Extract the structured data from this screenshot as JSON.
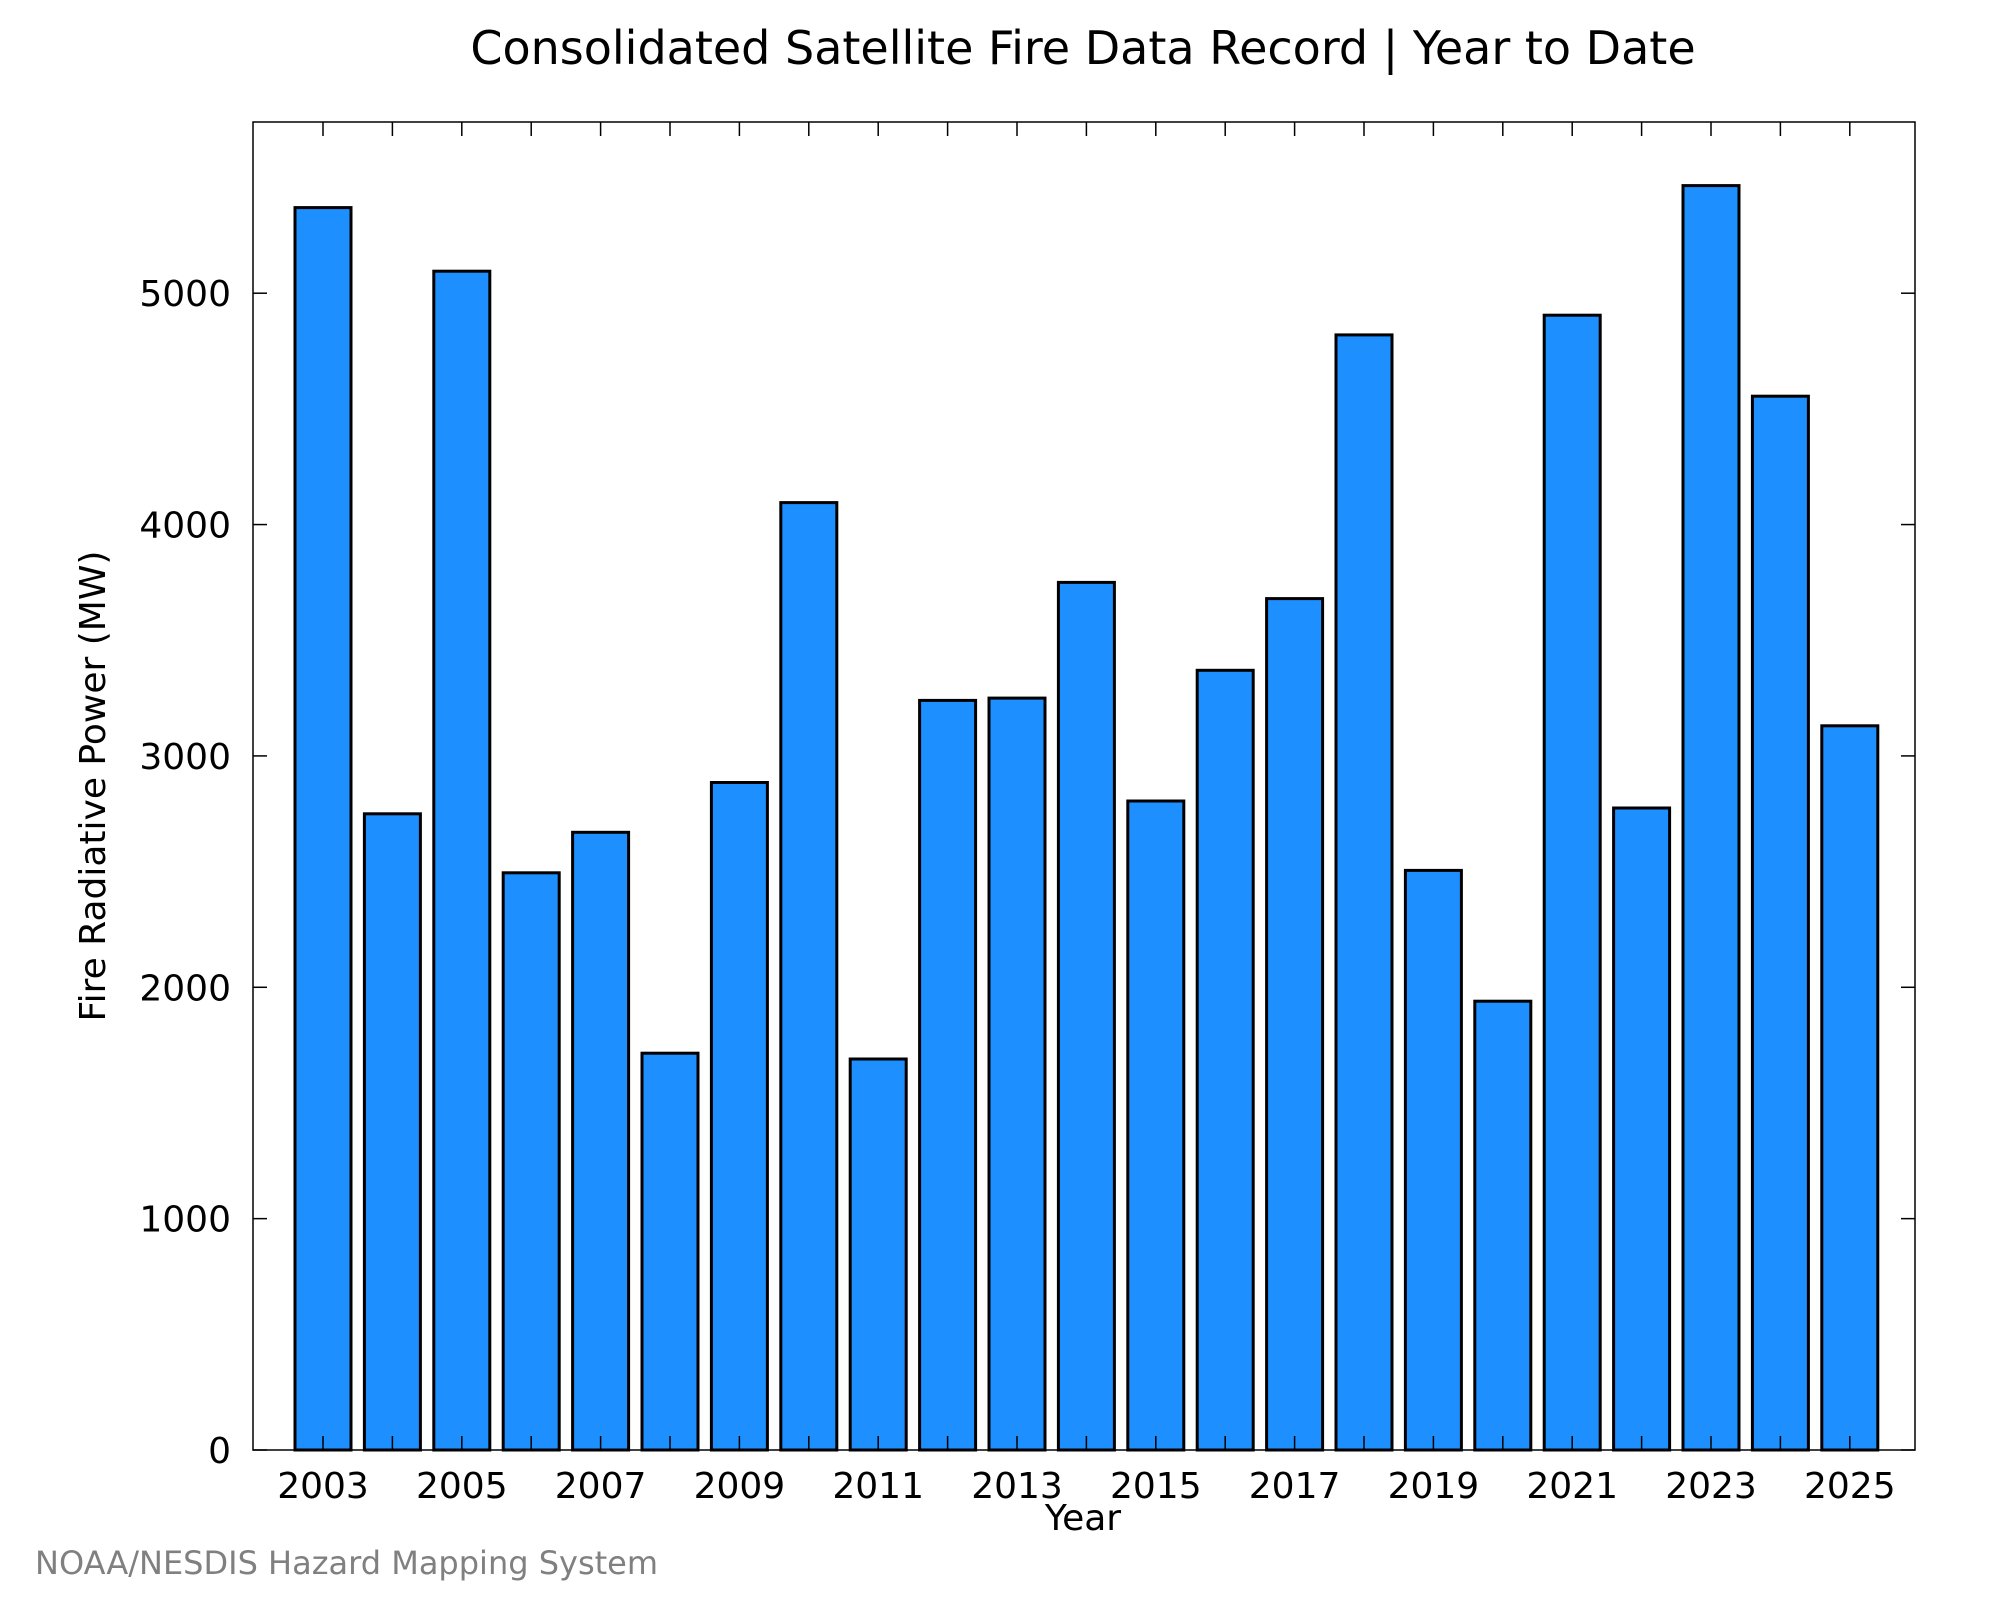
{
  "chart_data": {
    "type": "bar",
    "title": "Consolidated Satellite Fire Data Record | Year to Date",
    "xlabel": "Year",
    "ylabel": "Fire Radiative Power (MW)",
    "categories": [
      "2003",
      "2004",
      "2005",
      "2006",
      "2007",
      "2008",
      "2009",
      "2010",
      "2011",
      "2012",
      "2013",
      "2014",
      "2015",
      "2016",
      "2017",
      "2018",
      "2019",
      "2020",
      "2021",
      "2022",
      "2023",
      "2024",
      "2025"
    ],
    "values": [
      5370,
      2750,
      5095,
      2495,
      2670,
      1715,
      2885,
      4095,
      1690,
      3240,
      3250,
      3750,
      2805,
      3370,
      3680,
      4820,
      2505,
      1940,
      4905,
      2775,
      5465,
      4555,
      3130
    ],
    "xticks": [
      "2003",
      "2005",
      "2007",
      "2009",
      "2011",
      "2013",
      "2015",
      "2017",
      "2019",
      "2021",
      "2023",
      "2025"
    ],
    "yticks": [
      0,
      1000,
      2000,
      3000,
      4000,
      5000
    ],
    "ylim": [
      0,
      5740
    ],
    "grid": false,
    "bar_color": "#1e8fff",
    "bar_edge_color": "#000000"
  },
  "footer": "NOAA/NESDIS Hazard Mapping System"
}
